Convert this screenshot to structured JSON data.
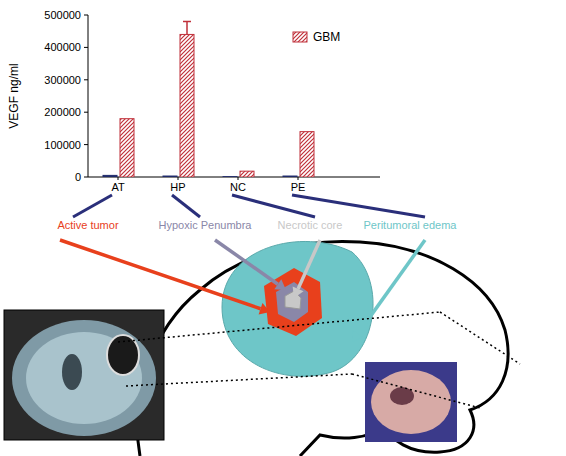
{
  "chart_data": {
    "type": "bar",
    "y_label": "VEGF ng/ml",
    "categories": [
      "AT",
      "HP",
      "NC",
      "PE"
    ],
    "series": [
      {
        "color": "#1f2a6b",
        "values": [
          5000,
          3000,
          1000,
          3000
        ]
      },
      {
        "name": "GBM",
        "color": "#c0303a",
        "values": [
          180000,
          440000,
          18000,
          140000
        ],
        "errors": [
          null,
          40000,
          null,
          null
        ]
      }
    ],
    "ylim": [
      0,
      500000
    ],
    "yticks": [
      0,
      100000,
      200000,
      300000,
      400000,
      500000
    ],
    "grid": false,
    "legend": "upper-right"
  },
  "diagram": {
    "regions": [
      {
        "label": "Active tumor",
        "color": "#e8401c"
      },
      {
        "label": "Hypoxic Penumbra",
        "color": "#8a87a8"
      },
      {
        "label": "Necrotic core",
        "color": "#c8c8c8"
      },
      {
        "label": "Peritumoral edema",
        "color": "#6ec6c8"
      }
    ]
  }
}
